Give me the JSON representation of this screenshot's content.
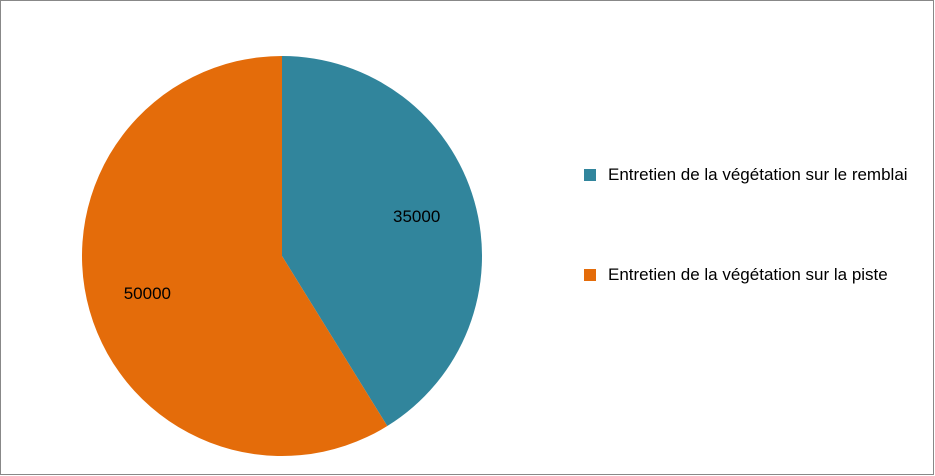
{
  "chart_data": {
    "type": "pie",
    "categories": [
      "Entretien de la végétation sur le remblai",
      "Entretien de la végétation sur la piste"
    ],
    "values": [
      35000,
      50000
    ],
    "colors": [
      "#31859c",
      "#e46c0a"
    ],
    "legend": "right"
  }
}
